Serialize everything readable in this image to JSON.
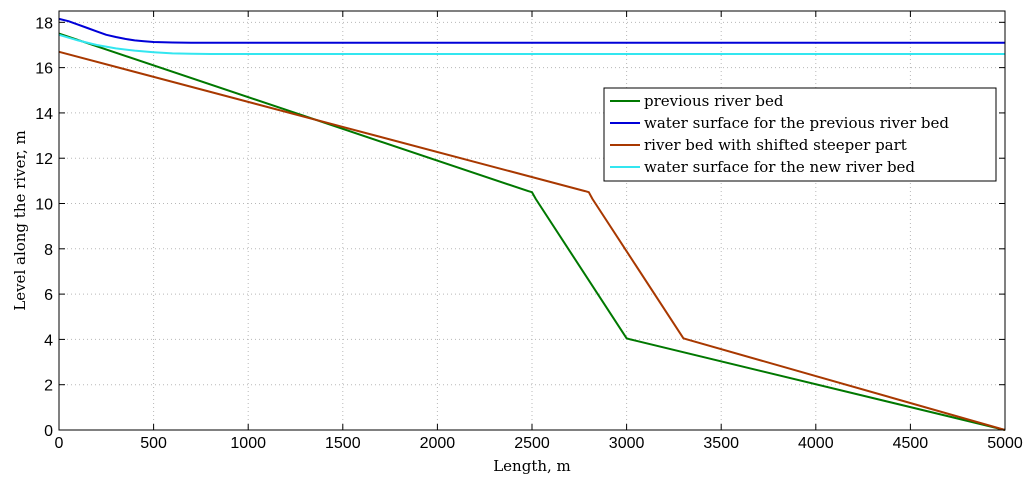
{
  "chart_data": {
    "type": "line",
    "title": "",
    "xlabel": "Length, m",
    "ylabel": "Level along the river, m",
    "xlim": [
      0,
      5000
    ],
    "ylim": [
      0,
      18.5
    ],
    "xticks": [
      0,
      500,
      1000,
      1500,
      2000,
      2500,
      3000,
      3500,
      4000,
      4500,
      5000
    ],
    "yticks": [
      0,
      2,
      4,
      6,
      8,
      10,
      12,
      14,
      16,
      18
    ],
    "grid": true,
    "legend_position": "right",
    "series": [
      {
        "name": "previous river bed",
        "color": "#007800",
        "x": [
          0,
          2480,
          2500,
          2520,
          3000,
          3020,
          5000
        ],
        "y": [
          17.5,
          10.55,
          10.5,
          10.2,
          4.05,
          4.0,
          0
        ]
      },
      {
        "name": "water surface for the previous river bed",
        "color": "#0000d8",
        "x": [
          0,
          50,
          100,
          150,
          200,
          250,
          300,
          350,
          400,
          450,
          500,
          600,
          700,
          800,
          1000,
          1500,
          2000,
          3000,
          4000,
          5000
        ],
        "y": [
          18.15,
          18.05,
          17.9,
          17.75,
          17.6,
          17.45,
          17.35,
          17.27,
          17.2,
          17.16,
          17.13,
          17.11,
          17.1,
          17.1,
          17.1,
          17.1,
          17.1,
          17.1,
          17.1,
          17.1
        ]
      },
      {
        "name": "river bed with shifted steeper part",
        "color": "#a83800",
        "x": [
          0,
          2780,
          2800,
          2820,
          3300,
          3320,
          5000
        ],
        "y": [
          16.7,
          10.55,
          10.5,
          10.2,
          4.05,
          4.0,
          0
        ]
      },
      {
        "name": "water surface for the new river bed",
        "color": "#33e6f0",
        "x": [
          0,
          100,
          200,
          300,
          400,
          500,
          600,
          700,
          800,
          1000,
          2000,
          3000,
          4000,
          5000
        ],
        "y": [
          17.45,
          17.2,
          17.0,
          16.85,
          16.75,
          16.68,
          16.63,
          16.61,
          16.6,
          16.6,
          16.6,
          16.6,
          16.6,
          16.6
        ]
      }
    ]
  }
}
